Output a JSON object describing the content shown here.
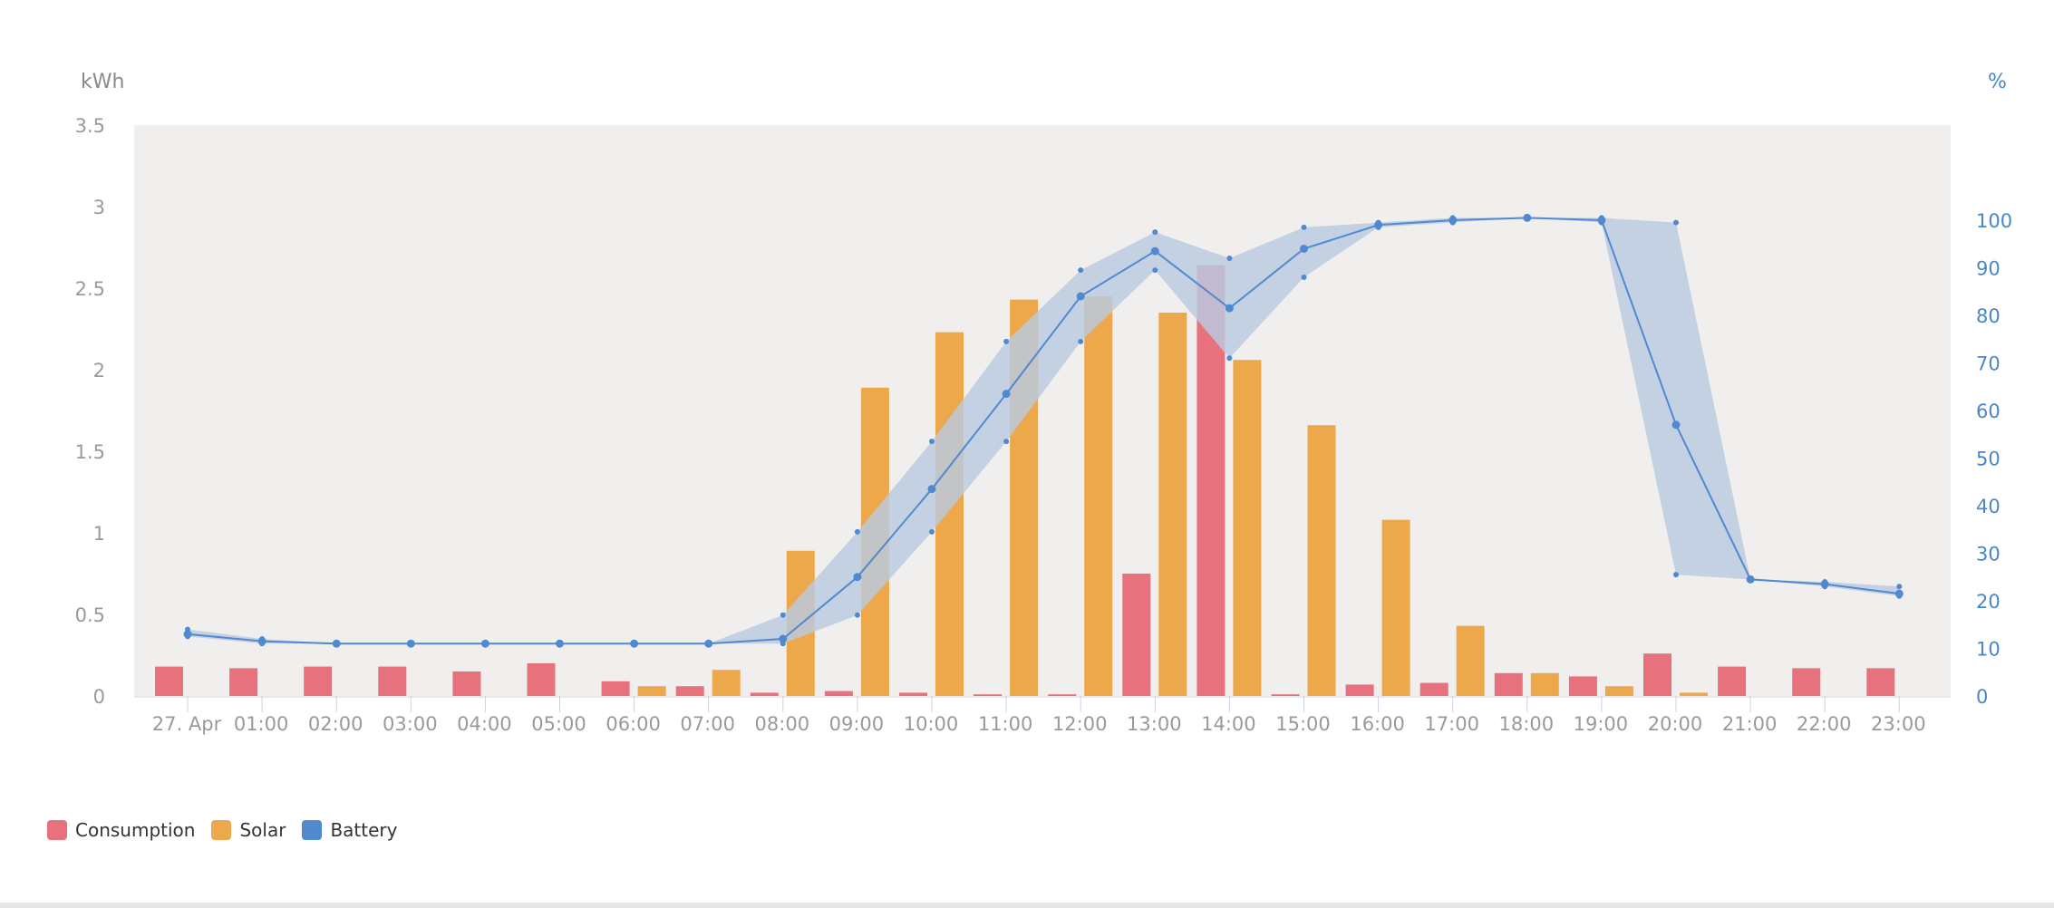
{
  "chart_data": {
    "type": "bar",
    "categories": [
      "27. Apr",
      "01:00",
      "02:00",
      "03:00",
      "04:00",
      "05:00",
      "06:00",
      "07:00",
      "08:00",
      "09:00",
      "10:00",
      "11:00",
      "12:00",
      "13:00",
      "14:00",
      "15:00",
      "16:00",
      "17:00",
      "18:00",
      "19:00",
      "20:00",
      "21:00",
      "22:00",
      "23:00"
    ],
    "y_left": {
      "label": "kWh",
      "min": 0,
      "max": 3.5,
      "ticks": [
        "0",
        "0.5",
        "1",
        "1.5",
        "2",
        "2.5",
        "3",
        "3.5"
      ]
    },
    "y_right": {
      "label": "%",
      "min": 0,
      "max": 120,
      "ticks": [
        "0",
        "10",
        "20",
        "30",
        "40",
        "50",
        "60",
        "70",
        "80",
        "90",
        "100"
      ]
    },
    "grid": false,
    "legend_position": "bottom-left",
    "series": [
      {
        "name": "Consumption",
        "type": "bar",
        "axis": "left",
        "color": "#e8717e",
        "values": [
          0.18,
          0.17,
          0.18,
          0.18,
          0.15,
          0.2,
          0.09,
          0.06,
          0.02,
          0.03,
          0.02,
          0.01,
          0.01,
          0.75,
          2.64,
          0.01,
          0.07,
          0.08,
          0.14,
          0.12,
          0.26,
          0.18,
          0.17,
          0.17
        ]
      },
      {
        "name": "Solar",
        "type": "bar",
        "axis": "left",
        "color": "#eca84b",
        "values": [
          0,
          0,
          0,
          0,
          0,
          0,
          0.06,
          0.16,
          0.89,
          1.89,
          2.23,
          2.43,
          2.45,
          2.35,
          2.06,
          1.66,
          1.08,
          0.43,
          0.14,
          0.06,
          0.02,
          0,
          0,
          0
        ]
      },
      {
        "name": "Battery",
        "type": "line",
        "axis": "right",
        "color": "#5089cf",
        "band_color": "#b9cbe0",
        "values": [
          13,
          11.5,
          11,
          11,
          11,
          11,
          11,
          11,
          12,
          25,
          43.5,
          63.5,
          84,
          93.5,
          81.5,
          94,
          99,
          100,
          100.5,
          100,
          57,
          24.5,
          23.5,
          21.5
        ],
        "min": [
          12.5,
          11,
          11,
          11,
          11,
          11,
          11,
          11,
          11,
          17,
          34.5,
          53.5,
          74.5,
          89.5,
          71,
          88,
          98.5,
          99.5,
          100.5,
          99.5,
          25.5,
          24.5,
          23,
          21
        ],
        "max": [
          14,
          12,
          11,
          11,
          11,
          11,
          11,
          11,
          17,
          34.5,
          53.5,
          74.5,
          89.5,
          97.5,
          92,
          98.5,
          99.5,
          100.5,
          100.5,
          100.5,
          99.5,
          24.5,
          24,
          23
        ]
      }
    ]
  },
  "legend": {
    "items": [
      {
        "label": "Consumption",
        "color": "#e8717e"
      },
      {
        "label": "Solar",
        "color": "#eca84b"
      },
      {
        "label": "Battery",
        "color": "#5089cf"
      }
    ]
  },
  "colors": {
    "plot_background": "#f0efed",
    "left_axis_text": "#9a9a9a",
    "right_axis_text": "#4a86c8"
  }
}
